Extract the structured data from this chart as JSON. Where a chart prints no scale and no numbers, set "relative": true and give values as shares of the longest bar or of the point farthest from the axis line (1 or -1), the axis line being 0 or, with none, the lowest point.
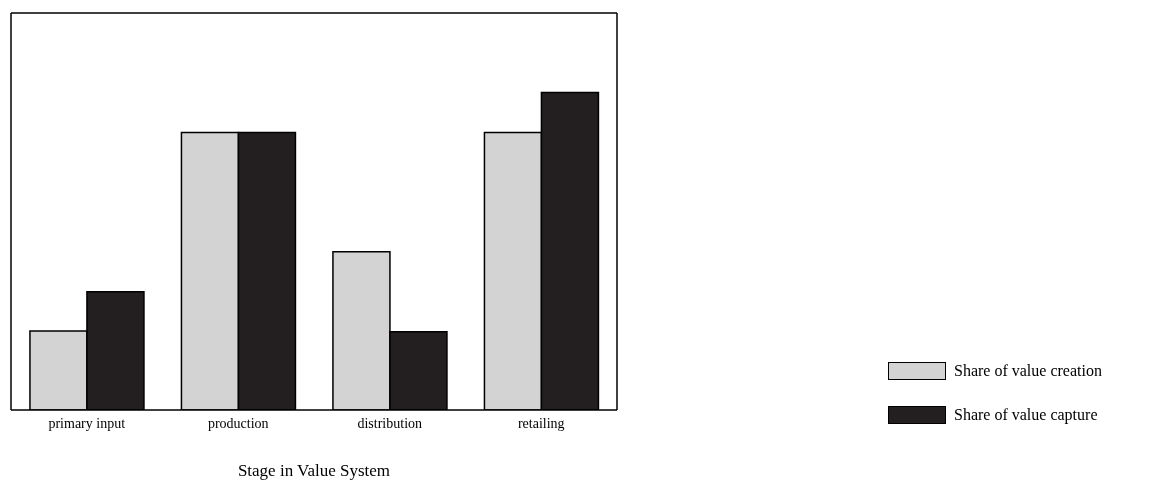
{
  "chart_data": {
    "type": "bar",
    "relative": true,
    "xlabel": "Stage in Value System",
    "categories": [
      "primary input",
      "production",
      "distribution",
      "retailing"
    ],
    "series": [
      {
        "name": "Share of value creation",
        "color": "#d3d3d3",
        "values": [
          0.249,
          0.874,
          0.498,
          0.874
        ]
      },
      {
        "name": "Share of value capture",
        "color": "#231f20",
        "values": [
          0.372,
          0.874,
          0.246,
          1
        ]
      }
    ],
    "legend": "bottom right"
  }
}
